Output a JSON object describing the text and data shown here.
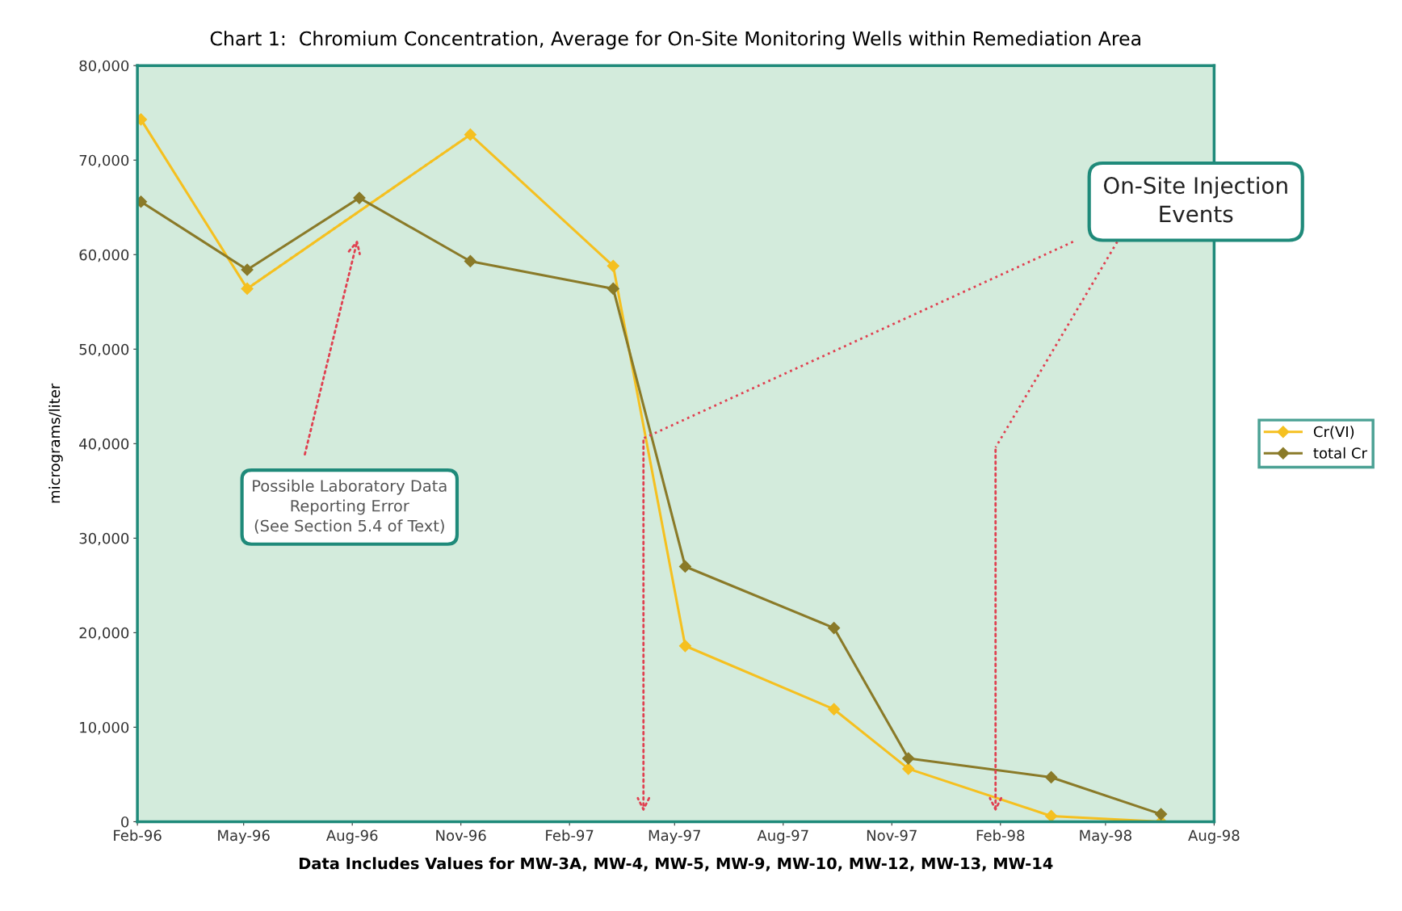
{
  "chart_data": {
    "type": "line",
    "title": "Chart 1:  Chromium Concentration, Average for On-Site Monitoring Wells within Remediation Area",
    "xlabel": "Data Includes Values for MW-3A, MW-4, MW-5, MW-9, MW-10, MW-12, MW-13, MW-14",
    "ylabel": "micrograms/liter",
    "series": [
      {
        "name": "Cr(VI)",
        "color": "#f5c020",
        "x": [
          "1996-02-04",
          "1996-05-04",
          "1996-11-09",
          "1997-03-10",
          "1997-05-10",
          "1997-09-13",
          "1997-11-15",
          "1998-03-16",
          "1998-06-17"
        ],
        "values": [
          74300,
          56400,
          72700,
          58800,
          18600,
          11900,
          5600,
          600,
          0
        ]
      },
      {
        "color": "#f5c020",
        "line_style": "dotted",
        "marker": "none",
        "x": [
          "1996-05-04",
          "1996-11-09"
        ],
        "values": [
          56400,
          72700
        ]
      },
      {
        "name": "total Cr",
        "color": "#8a7a28",
        "x": [
          "1996-02-04",
          "1996-05-04",
          "1996-08-07",
          "1996-11-09",
          "1997-03-10",
          "1997-05-10",
          "1997-09-13",
          "1997-11-15",
          "1998-03-16",
          "1998-06-17"
        ],
        "values": [
          65600,
          58400,
          66000,
          59300,
          56400,
          27000,
          20500,
          6700,
          4700,
          800
        ]
      }
    ],
    "xlim": [
      "1996-02-01",
      "1998-08-01"
    ],
    "xticks": [
      {
        "value": "1996-02-01",
        "label": "Feb-96"
      },
      {
        "value": "1996-05-01",
        "label": "May-96"
      },
      {
        "value": "1996-08-01",
        "label": "Aug-96"
      },
      {
        "value": "1996-11-01",
        "label": "Nov-96"
      },
      {
        "value": "1997-02-01",
        "label": "Feb-97"
      },
      {
        "value": "1997-05-01",
        "label": "May-97"
      },
      {
        "value": "1997-08-01",
        "label": "Aug-97"
      },
      {
        "value": "1997-11-01",
        "label": "Nov-97"
      },
      {
        "value": "1998-02-01",
        "label": "Feb-98"
      },
      {
        "value": "1998-05-01",
        "label": "May-98"
      },
      {
        "value": "1998-08-01",
        "label": "Aug-98"
      }
    ],
    "ylim": [
      0,
      80000
    ],
    "yticks": [
      {
        "value": 0,
        "label": "0"
      },
      {
        "value": 10000,
        "label": "10,000"
      },
      {
        "value": 20000,
        "label": "20,000"
      },
      {
        "value": 30000,
        "label": "30,000"
      },
      {
        "value": 40000,
        "label": "40,000"
      },
      {
        "value": 50000,
        "label": "50,000"
      },
      {
        "value": 60000,
        "label": "60,000"
      },
      {
        "value": 70000,
        "label": "70,000"
      },
      {
        "value": 80000,
        "label": "80,000"
      }
    ],
    "marker": "diamond",
    "line_style": "solid",
    "grid": false,
    "legend": "right",
    "annotations": [
      "Possible Laboratory Data\nReporting Error\n(See Section 5.4 of Text)",
      "On-Site Injection\nEvents"
    ]
  }
}
